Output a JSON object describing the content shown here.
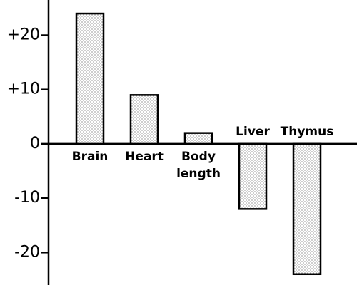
{
  "chart_data": {
    "type": "bar",
    "categories": [
      "Brain",
      "Heart",
      "Body length",
      "Liver",
      "Thymus"
    ],
    "values": [
      24,
      9,
      2,
      -12,
      -24
    ],
    "ylim": [
      -26,
      26.5
    ],
    "yticks": [
      {
        "value": 20,
        "label": "+20"
      },
      {
        "value": 10,
        "label": "+10"
      },
      0,
      -10,
      -20
    ],
    "grid": false
  }
}
